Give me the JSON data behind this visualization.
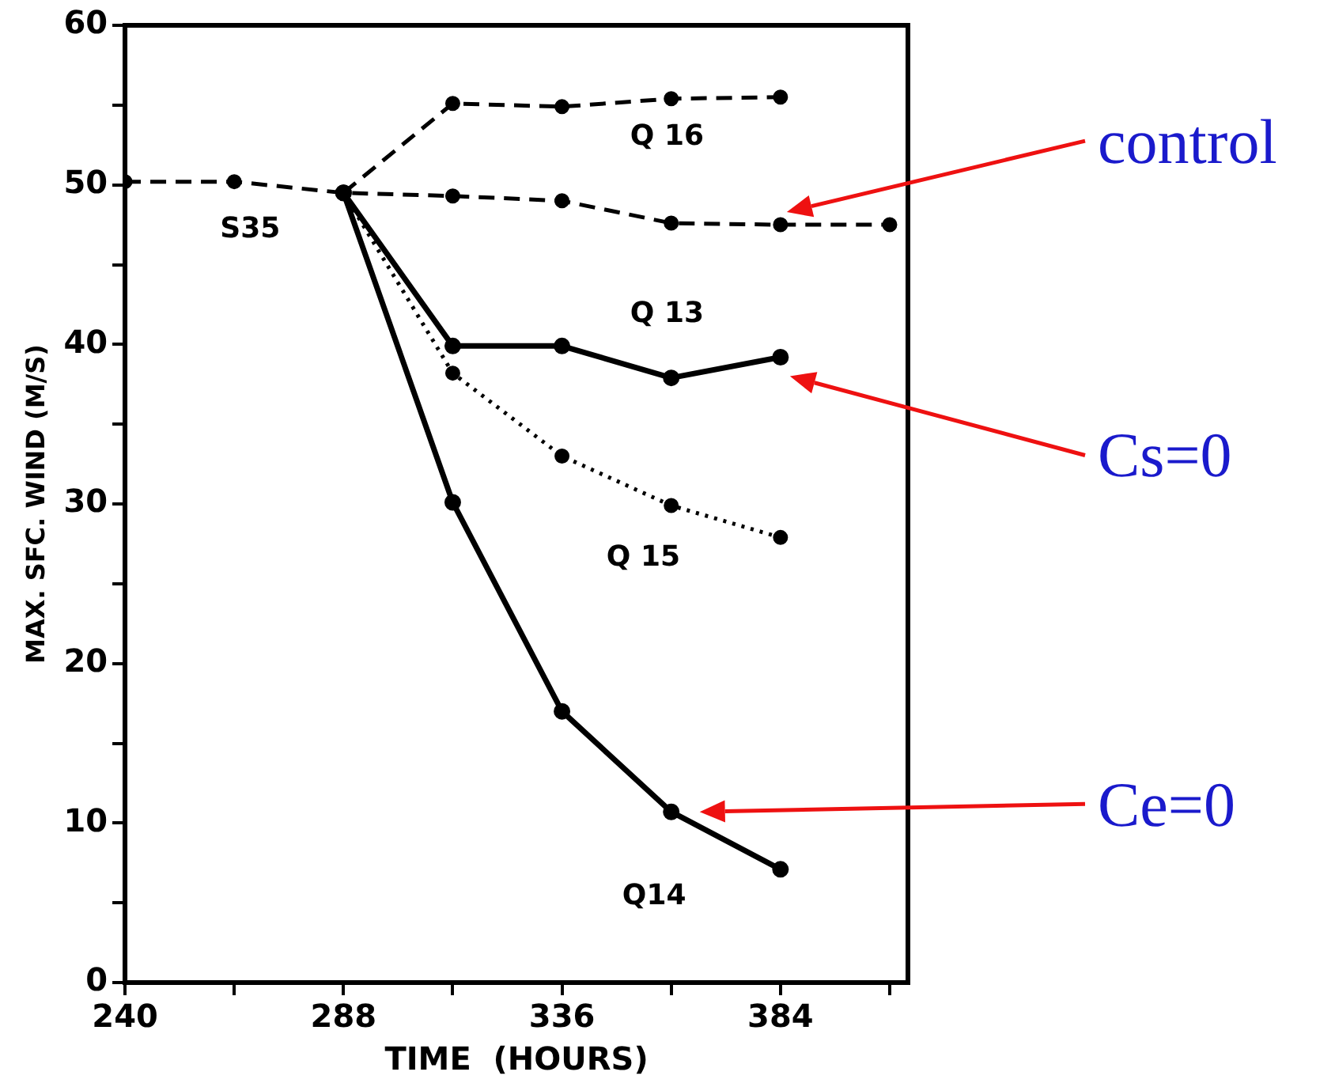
{
  "chart_data": {
    "type": "line",
    "xlabel": "TIME  (HOURS)",
    "ylabel": "MAX. SFC. WIND (M/S)",
    "xlim": [
      240,
      412
    ],
    "xticks": [
      240,
      {
        "value": 264,
        "label": null
      },
      288,
      {
        "value": 312,
        "label": null
      },
      336,
      {
        "value": 360,
        "label": null
      },
      384,
      {
        "value": 408,
        "label": null
      }
    ],
    "ylim": [
      0,
      60
    ],
    "yticks": [
      0,
      {
        "value": 5,
        "label": null
      },
      10,
      {
        "value": 15,
        "label": null
      },
      20,
      {
        "value": 25,
        "label": null
      },
      30,
      {
        "value": 35,
        "label": null
      },
      40,
      {
        "value": 45,
        "label": null
      },
      50,
      {
        "value": 55,
        "label": null
      },
      60
    ],
    "grid": false,
    "legend": false,
    "marker": "circle",
    "series": [
      {
        "name": "S35",
        "color": "#000000",
        "line_style": "dashed",
        "x": [
          240,
          264,
          288,
          312,
          336,
          360,
          384,
          408
        ],
        "values": [
          50.2,
          50.2,
          49.5,
          49.3,
          49.0,
          47.6,
          47.5,
          47.5
        ]
      },
      {
        "name": "Q 16",
        "color": "#000000",
        "line_style": "dashed",
        "x": [
          288,
          312,
          336,
          360,
          384
        ],
        "values": [
          49.5,
          55.1,
          54.9,
          55.4,
          55.5
        ]
      },
      {
        "name": "Q 13",
        "color": "#000000",
        "line_style": "solid",
        "x": [
          288,
          312,
          336,
          360,
          384
        ],
        "values": [
          49.5,
          39.9,
          39.9,
          37.9,
          39.2
        ]
      },
      {
        "name": "Q 15",
        "color": "#000000",
        "line_style": "dotted",
        "x": [
          288,
          312,
          336,
          360,
          384
        ],
        "values": [
          49.5,
          38.2,
          33.0,
          29.9,
          27.9
        ]
      },
      {
        "name": "Q14",
        "color": "#000000",
        "line_style": "solid",
        "x": [
          288,
          312,
          336,
          360,
          384
        ],
        "values": [
          49.5,
          30.1,
          17.0,
          10.7,
          7.1
        ]
      }
    ],
    "annotations": [
      "control",
      "Cs=0",
      "Ce=0"
    ]
  }
}
